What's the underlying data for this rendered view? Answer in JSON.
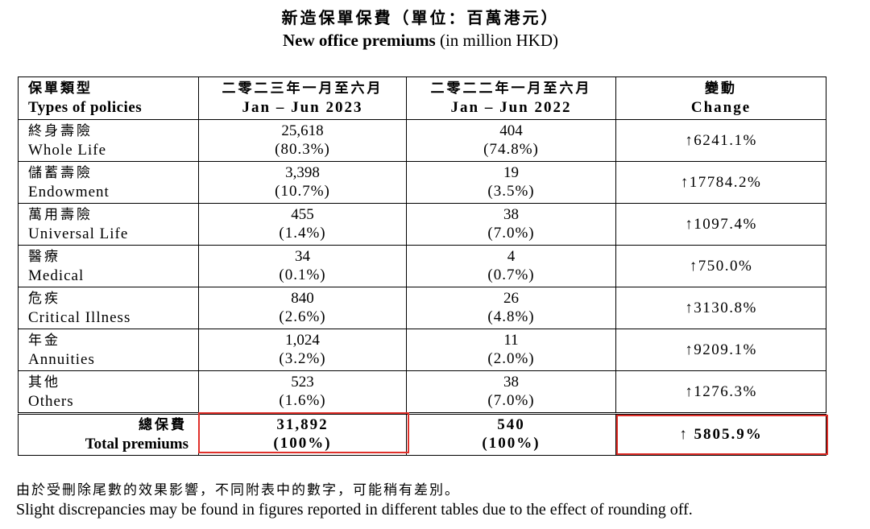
{
  "title": {
    "zh": "新造保單保費（單位：百萬港元）",
    "en_bold": "New office premiums",
    "en_rest": " (in million HKD)"
  },
  "table": {
    "headers": [
      {
        "zh": "保單類型",
        "en": "Types of policies"
      },
      {
        "zh": "二零二三年一月至六月",
        "en": "Jan – Jun 2023"
      },
      {
        "zh": "二零二二年一月至六月",
        "en": "Jan – Jun 2022"
      },
      {
        "zh": "變動",
        "en": "Change"
      }
    ],
    "rows": [
      {
        "zh": "終身壽險",
        "en": "Whole Life",
        "v2023": "25,618",
        "p2023": "(80.3%)",
        "v2022": "404",
        "p2022": "(74.8%)",
        "change": "↑6241.1%"
      },
      {
        "zh": "儲蓄壽險",
        "en": "Endowment",
        "v2023": "3,398",
        "p2023": "(10.7%)",
        "v2022": "19",
        "p2022": "(3.5%)",
        "change": "↑17784.2%"
      },
      {
        "zh": "萬用壽險",
        "en": "Universal Life",
        "v2023": "455",
        "p2023": "(1.4%)",
        "v2022": "38",
        "p2022": "(7.0%)",
        "change": "↑1097.4%"
      },
      {
        "zh": "醫療",
        "en": "Medical",
        "v2023": "34",
        "p2023": "(0.1%)",
        "v2022": "4",
        "p2022": "(0.7%)",
        "change": "↑750.0%"
      },
      {
        "zh": "危疾",
        "en": "Critical Illness",
        "v2023": "840",
        "p2023": "(2.6%)",
        "v2022": "26",
        "p2022": "(4.8%)",
        "change": "↑3130.8%"
      },
      {
        "zh": "年金",
        "en": "Annuities",
        "v2023": "1,024",
        "p2023": "(3.2%)",
        "v2022": "11",
        "p2022": "(2.0%)",
        "change": "↑9209.1%"
      },
      {
        "zh": "其他",
        "en": "Others",
        "v2023": "523",
        "p2023": "(1.6%)",
        "v2022": "38",
        "p2022": "(7.0%)",
        "change": "↑1276.3%"
      }
    ],
    "total": {
      "zh": "總保費",
      "en": "Total premiums",
      "v2023": "31,892",
      "p2023": "(100%)",
      "v2022": "540",
      "p2022": "(100%)",
      "change": "↑ 5805.9%"
    }
  },
  "notes": {
    "zh": "由於受刪除尾數的效果影響，不同附表中的數字，可能稍有差別。",
    "en": "Slight discrepancies may be found in figures reported in different tables due to the effect of rounding off."
  },
  "colors": {
    "highlight": "#e0302a"
  }
}
